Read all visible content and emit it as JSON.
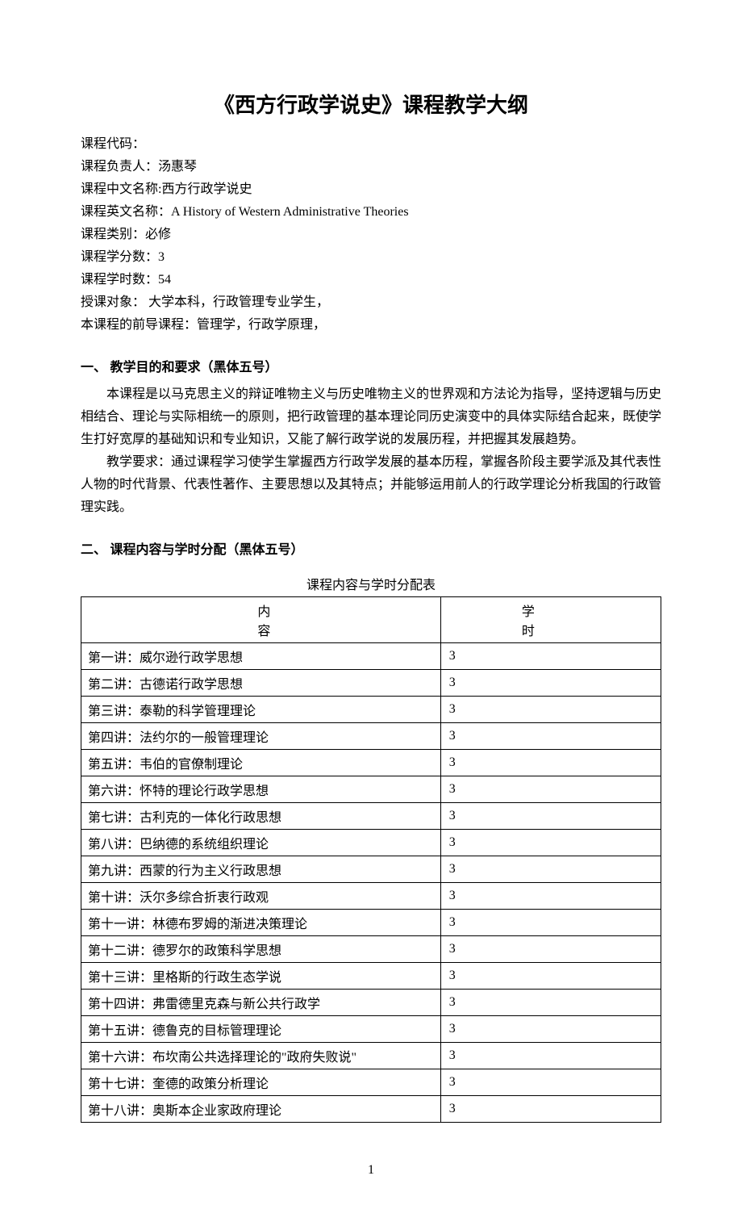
{
  "title": "《西方行政学说史》课程教学大纲",
  "meta": {
    "code_label": "课程代码：",
    "code_value": "",
    "owner_label": "课程负责人：",
    "owner_value": "汤惠琴",
    "cn_name_label": "课程中文名称:",
    "cn_name_value": "西方行政学说史",
    "en_name_label": "课程英文名称：",
    "en_name_value": "A History of Western Administrative Theories",
    "category_label": "课程类别：",
    "category_value": "必修",
    "credits_label": "课程学分数：",
    "credits_value": "3",
    "hours_label": "课程学时数：",
    "hours_value": "54",
    "audience_label": "授课对象：",
    "audience_value": " 大学本科，行政管理专业学生，",
    "prereq_label": "本课程的前导课程：",
    "prereq_value": "管理学，行政学原理，"
  },
  "section1": {
    "heading": "一、 教学目的和要求（黑体五号）",
    "para1": "本课程是以马克思主义的辩证唯物主义与历史唯物主义的世界观和方法论为指导，坚持逻辑与历史相结合、理论与实际相统一的原则，把行政管理的基本理论同历史演变中的具体实际结合起来，既使学生打好宽厚的基础知识和专业知识，又能了解行政学说的发展历程，并把握其发展趋势。",
    "para2": "教学要求：通过课程学习使学生掌握西方行政学发展的基本历程，掌握各阶段主要学派及其代表性人物的时代背景、代表性著作、主要思想以及其特点；并能够运用前人的行政学理论分析我国的行政管理实践。"
  },
  "section2": {
    "heading": "二、 课程内容与学时分配（黑体五号）",
    "table_caption": "课程内容与学时分配表",
    "header_content": "内容",
    "header_hours": "学时",
    "rows": [
      {
        "content": "第一讲：威尔逊行政学思想",
        "hours": "3"
      },
      {
        "content": "第二讲：古德诺行政学思想",
        "hours": "3"
      },
      {
        "content": "第三讲：泰勒的科学管理理论",
        "hours": "3"
      },
      {
        "content": "第四讲：法约尔的一般管理理论",
        "hours": "3"
      },
      {
        "content": "第五讲：韦伯的官僚制理论",
        "hours": "3"
      },
      {
        "content": "第六讲：怀特的理论行政学思想",
        "hours": "3"
      },
      {
        "content": "第七讲：古利克的一体化行政思想",
        "hours": "3"
      },
      {
        "content": "第八讲：巴纳德的系统组织理论",
        "hours": "3"
      },
      {
        "content": "第九讲：西蒙的行为主义行政思想",
        "hours": "3"
      },
      {
        "content": "第十讲：沃尔多综合折衷行政观",
        "hours": "3"
      },
      {
        "content": "第十一讲：林德布罗姆的渐进决策理论",
        "hours": "3"
      },
      {
        "content": "第十二讲：德罗尔的政策科学思想",
        "hours": "3"
      },
      {
        "content": "第十三讲：里格斯的行政生态学说",
        "hours": "3"
      },
      {
        "content": "第十四讲：弗雷德里克森与新公共行政学",
        "hours": "3"
      },
      {
        "content": "第十五讲：德鲁克的目标管理理论",
        "hours": "3"
      },
      {
        "content": "第十六讲：布坎南公共选择理论的\"政府失败说\"",
        "hours": "3"
      },
      {
        "content": "第十七讲：奎德的政策分析理论",
        "hours": "3"
      },
      {
        "content": "第十八讲：奥斯本企业家政府理论",
        "hours": "3"
      }
    ]
  },
  "page_number": "1"
}
